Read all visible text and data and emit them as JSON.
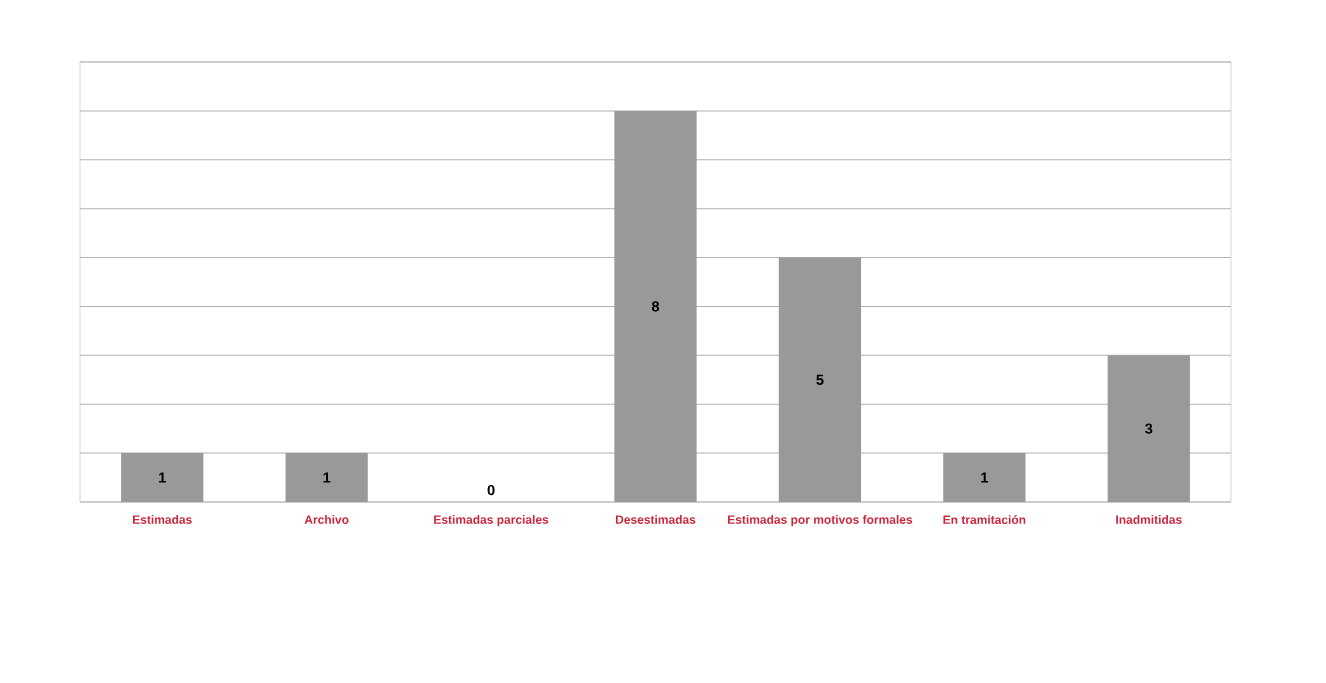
{
  "chart_data": {
    "type": "bar",
    "categories": [
      "Estimadas",
      "Archivo",
      "Estimadas parciales",
      "Desestimadas",
      "Estimadas por motivos formales",
      "En tramitación",
      "Inadmitidas"
    ],
    "values": [
      1,
      1,
      0,
      8,
      5,
      1,
      3
    ],
    "color": "#999999",
    "ylim": [
      0,
      9
    ],
    "yticks": [
      {
        "value": 0,
        "label": null
      },
      {
        "value": 1,
        "label": null
      },
      {
        "value": 2,
        "label": null
      },
      {
        "value": 3,
        "label": null
      },
      {
        "value": 4,
        "label": null
      },
      {
        "value": 5,
        "label": null
      },
      {
        "value": 6,
        "label": null
      },
      {
        "value": 7,
        "label": null
      },
      {
        "value": 8,
        "label": null
      },
      {
        "value": 9,
        "label": null
      }
    ],
    "grid": "y",
    "tick_labels": "x",
    "data_labels": true
  }
}
